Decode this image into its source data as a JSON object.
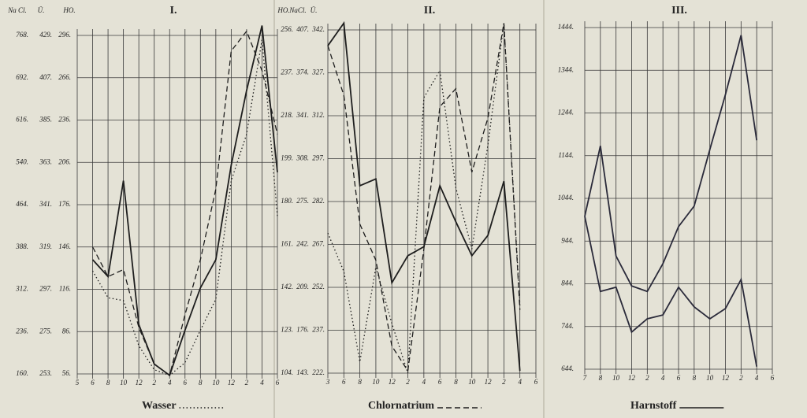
{
  "chart_data": [
    {
      "type": "line",
      "title": "I.",
      "legend": {
        "label": "Wasser",
        "style": "dotted"
      },
      "y_title": "HO.",
      "categories": [
        "5",
        "6",
        "8",
        "10",
        "12",
        "2",
        "4",
        "6",
        "8",
        "10",
        "12",
        "2",
        "4",
        "6"
      ],
      "ylim": [
        56,
        296
      ],
      "yticks": [
        {
          "value": 296,
          "label": "296."
        },
        {
          "value": 266,
          "label": "266."
        },
        {
          "value": 236,
          "label": "236."
        },
        {
          "value": 206,
          "label": "206."
        },
        {
          "value": 176,
          "label": "176."
        },
        {
          "value": 146,
          "label": "146."
        },
        {
          "value": 116,
          "label": "116."
        },
        {
          "value": 86,
          "label": "86."
        },
        {
          "value": 56,
          "label": "56."
        }
      ],
      "extra_axes": [
        {
          "title": "Na Cl.",
          "ticks": [
            {
              "value": 768,
              "label": "768."
            },
            {
              "value": 692,
              "label": "692."
            },
            {
              "value": 616,
              "label": "616."
            },
            {
              "value": 540,
              "label": "540."
            },
            {
              "value": 464,
              "label": "464."
            },
            {
              "value": 388,
              "label": "388."
            },
            {
              "value": 312,
              "label": "312."
            },
            {
              "value": 236,
              "label": "236."
            },
            {
              "value": 160,
              "label": "160."
            }
          ]
        },
        {
          "title": "Ü.",
          "ticks": [
            {
              "value": 429,
              "label": "429."
            },
            {
              "value": 407,
              "label": "407."
            },
            {
              "value": 385,
              "label": "385."
            },
            {
              "value": 363,
              "label": "363."
            },
            {
              "value": 341,
              "label": "341."
            },
            {
              "value": 319,
              "label": "319."
            },
            {
              "value": 297,
              "label": "297."
            },
            {
              "value": 275,
              "label": "275."
            },
            {
              "value": 253,
              "label": "253."
            }
          ]
        }
      ],
      "series": [
        {
          "style": "solid",
          "color": "#1e1e1e",
          "values": [
            null,
            137,
            125,
            193,
            91,
            63,
            55,
            87,
            117,
            137,
            204,
            257,
            303,
            199
          ]
        },
        {
          "style": "dashed",
          "color": "#1e1e1e",
          "values": [
            null,
            146,
            125,
            130,
            89,
            63,
            55,
            98,
            137,
            187,
            285,
            299,
            271,
            226
          ]
        },
        {
          "style": "dotted",
          "color": "#1e1e1e",
          "values": [
            null,
            129,
            110,
            108,
            76,
            59,
            55,
            64,
            87,
            109,
            193,
            226,
            293,
            168
          ]
        }
      ]
    },
    {
      "type": "line",
      "title": "II.",
      "legend": {
        "label": "Chlornatrium",
        "style": "dashed"
      },
      "y_title": "HO.",
      "categories": [
        "3",
        "6",
        "8",
        "10",
        "12",
        "2",
        "4",
        "6",
        "8",
        "10",
        "12",
        "2",
        "4",
        "6"
      ],
      "ylim": [
        104,
        256
      ],
      "yticks": [
        {
          "value": 256,
          "label": "256."
        },
        {
          "value": 237,
          "label": "237."
        },
        {
          "value": 218,
          "label": "218."
        },
        {
          "value": 199,
          "label": "199."
        },
        {
          "value": 180,
          "label": "180."
        },
        {
          "value": 161,
          "label": "161."
        },
        {
          "value": 142,
          "label": "142."
        },
        {
          "value": 123,
          "label": "123."
        },
        {
          "value": 104,
          "label": "104."
        }
      ],
      "extra_axes": [
        {
          "title": "NaCl.",
          "ticks": [
            {
              "value": 407,
              "label": "407."
            },
            {
              "value": 374,
              "label": "374."
            },
            {
              "value": 341,
              "label": "341."
            },
            {
              "value": 308,
              "label": "308."
            },
            {
              "value": 275,
              "label": "275."
            },
            {
              "value": 242,
              "label": "242."
            },
            {
              "value": 209,
              "label": "209."
            },
            {
              "value": 176,
              "label": "176."
            },
            {
              "value": 143,
              "label": "143."
            }
          ]
        },
        {
          "title": "Ü.",
          "ticks": [
            {
              "value": 342,
              "label": "342."
            },
            {
              "value": 327,
              "label": "327."
            },
            {
              "value": 312,
              "label": "312."
            },
            {
              "value": 297,
              "label": "297."
            },
            {
              "value": 282,
              "label": "282."
            },
            {
              "value": 267,
              "label": "267."
            },
            {
              "value": 252,
              "label": "252."
            },
            {
              "value": 237,
              "label": "237."
            },
            {
              "value": 222,
              "label": "222."
            }
          ]
        }
      ],
      "series": [
        {
          "style": "solid",
          "color": "#1e1e1e",
          "values": [
            249,
            259,
            187,
            190,
            144,
            156,
            160,
            187,
            171,
            156,
            165,
            189,
            105,
            null
          ]
        },
        {
          "style": "dashed",
          "color": "#1e1e1e",
          "values": [
            249,
            227,
            170,
            154,
            116,
            105,
            159,
            222,
            230,
            193,
            217,
            259,
            132,
            null
          ]
        },
        {
          "style": "dotted",
          "color": "#1e1e1e",
          "values": [
            166,
            149,
            109,
            151,
            126,
            104,
            226,
            238,
            186,
            159,
            205,
            259,
            134,
            null
          ]
        }
      ]
    },
    {
      "type": "line",
      "title": "III.",
      "legend": {
        "label": "Harnstoff",
        "style": "solid"
      },
      "categories": [
        "7",
        "8",
        "10",
        "12",
        "2",
        "4",
        "6",
        "8",
        "10",
        "12",
        "2",
        "4",
        "6"
      ],
      "ylim": [
        644,
        1444
      ],
      "yticks": [
        {
          "value": 1444,
          "label": "1444."
        },
        {
          "value": 1344,
          "label": "1344."
        },
        {
          "value": 1244,
          "label": "1244."
        },
        {
          "value": 1144,
          "label": "1144."
        },
        {
          "value": 1044,
          "label": "1044."
        },
        {
          "value": 944,
          "label": "944."
        },
        {
          "value": 844,
          "label": "844."
        },
        {
          "value": 744,
          "label": "744."
        },
        {
          "value": 644,
          "label": "644."
        }
      ],
      "series": [
        {
          "style": "solid",
          "color": "#2a2a3a",
          "values": [
            1002,
            1167,
            909,
            839,
            826,
            891,
            978,
            1026,
            1158,
            1287,
            1426,
            1180,
            null
          ]
        },
        {
          "style": "solid",
          "color": "#2a2a3a",
          "values": [
            1002,
            826,
            836,
            731,
            762,
            771,
            836,
            790,
            762,
            786,
            854,
            650,
            null
          ]
        }
      ]
    }
  ]
}
